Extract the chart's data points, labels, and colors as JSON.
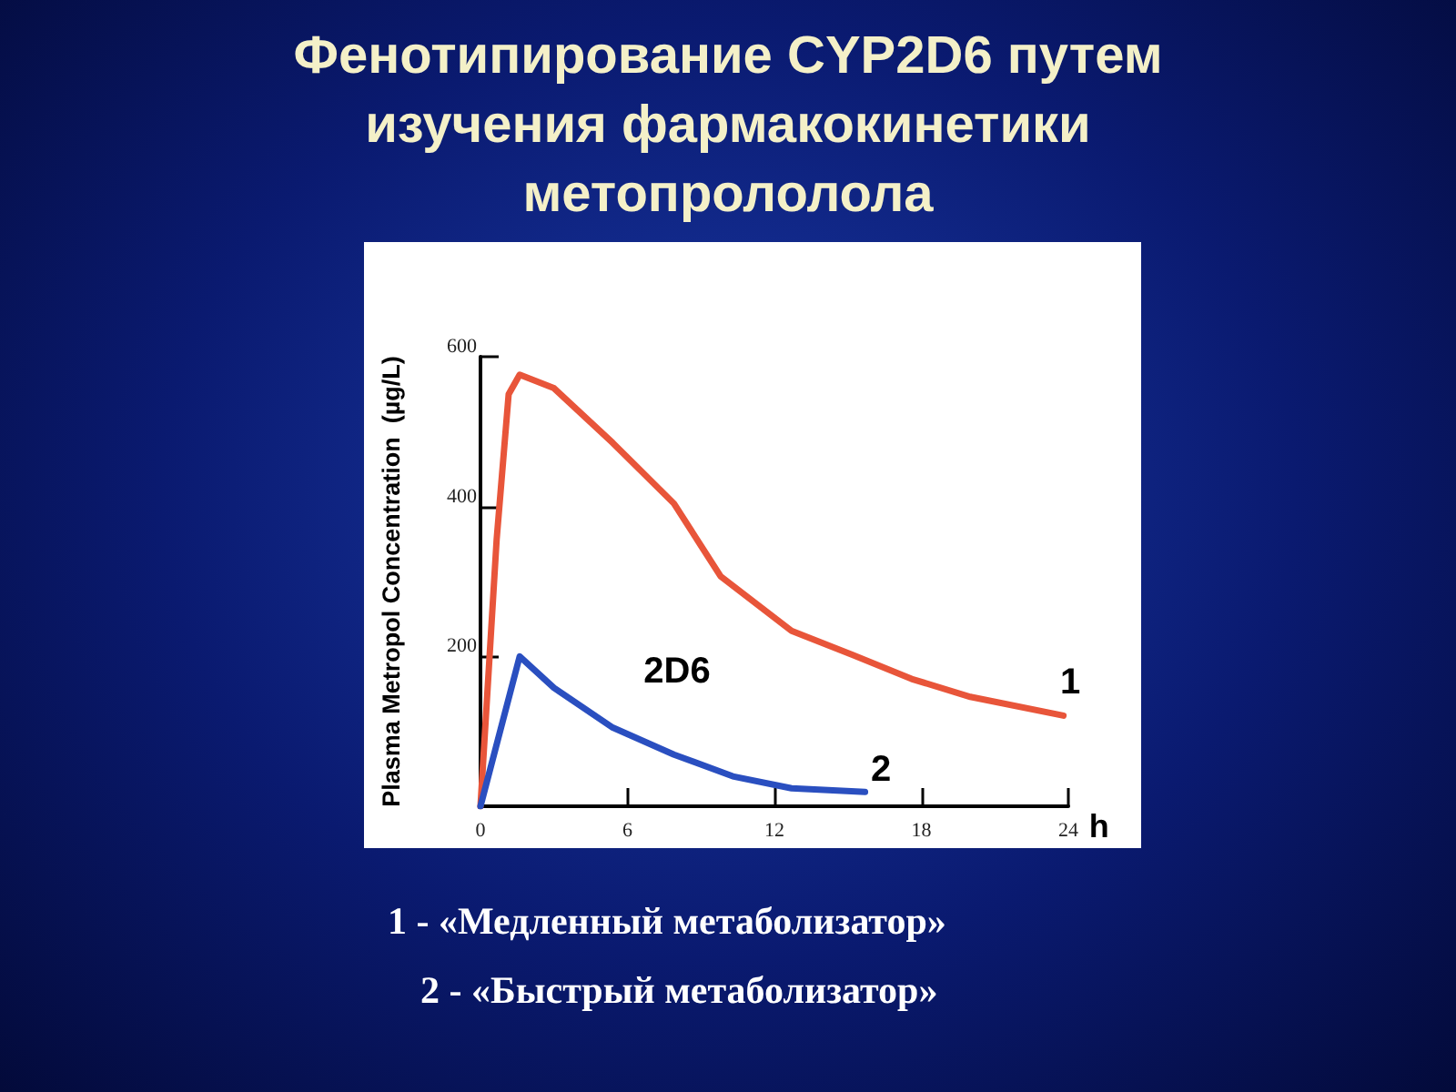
{
  "chart_data": {
    "type": "line",
    "title": "Фенотипирование CYP2D6 путем изучения фармакокинетики метопрололола",
    "ylabel": "Plasma Metropol Concentration  (µg/L)",
    "xlabel": "h",
    "xlim": [
      0,
      24
    ],
    "xticks": [
      0,
      6,
      12,
      18,
      24
    ],
    "ylim": [
      0,
      600
    ],
    "yticks": [
      {
        "value": 0,
        "label": null
      },
      200,
      400,
      600
    ],
    "grid": false,
    "marker": "none",
    "line_style": "solid",
    "series": [
      {
        "color": "#e8553a",
        "x": [
          0,
          0.66,
          1.15,
          1.6,
          3.0,
          5.4,
          7.9,
          9.8,
          12.7,
          15.2,
          17.6,
          20,
          23.8
        ],
        "values": [
          0,
          356,
          550,
          576,
          558,
          485,
          404,
          307,
          234,
          202,
          170,
          146,
          121
        ]
      },
      {
        "color": "#2a4fc0",
        "x": [
          0,
          1.6,
          3.0,
          5.4,
          7.9,
          10.3,
          12.7,
          15.7
        ],
        "values": [
          0,
          200,
          158,
          105,
          69,
          40,
          24,
          19
        ]
      }
    ],
    "annotations": [
      "2D6",
      "1",
      "2",
      "1 - «Медленный метаболизатор»",
      "2 - «Быстрый метаболизатор»"
    ]
  }
}
